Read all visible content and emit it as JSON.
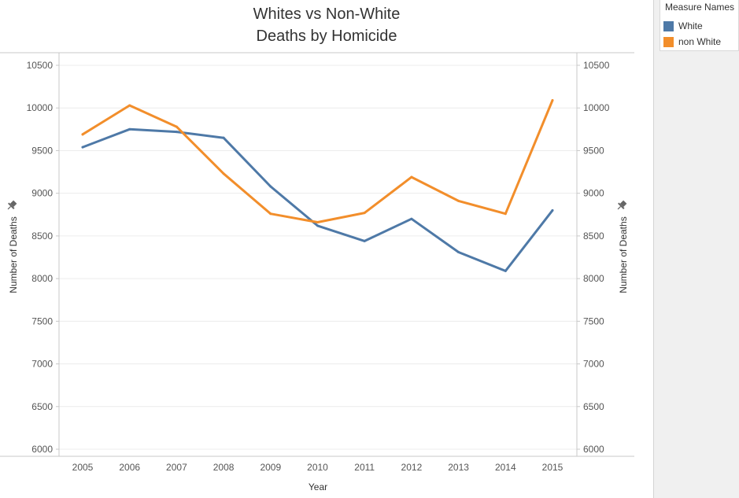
{
  "chart_data": {
    "type": "line",
    "title": [
      "Whites vs Non-White",
      "Deaths by Homicide"
    ],
    "xlabel": "Year",
    "ylabel_left": "Number of Deaths",
    "ylabel_right": "Number of Deaths",
    "categories": [
      "2005",
      "2006",
      "2007",
      "2008",
      "2009",
      "2010",
      "2011",
      "2012",
      "2013",
      "2014",
      "2015"
    ],
    "series": [
      {
        "name": "White",
        "color": "#4e79a7",
        "values": [
          9540,
          9750,
          9720,
          9650,
          9080,
          8620,
          8440,
          8700,
          8310,
          8090,
          8800
        ]
      },
      {
        "name": "non White",
        "color": "#f28e2b",
        "values": [
          9690,
          10030,
          9780,
          9230,
          8760,
          8660,
          8770,
          9190,
          8910,
          8760,
          10090
        ]
      }
    ],
    "ylim": [
      6000,
      10500
    ],
    "yticks": [
      6000,
      6500,
      7000,
      7500,
      8000,
      8500,
      9000,
      9500,
      10000,
      10500
    ],
    "grid": true,
    "dual_axis": true,
    "legend_position": "top-right"
  },
  "legend": {
    "title": "Measure Names",
    "items": [
      "White",
      "non White"
    ]
  },
  "icons": {
    "left_axis_pin": "pin-icon",
    "right_axis_pin": "pin-icon"
  }
}
